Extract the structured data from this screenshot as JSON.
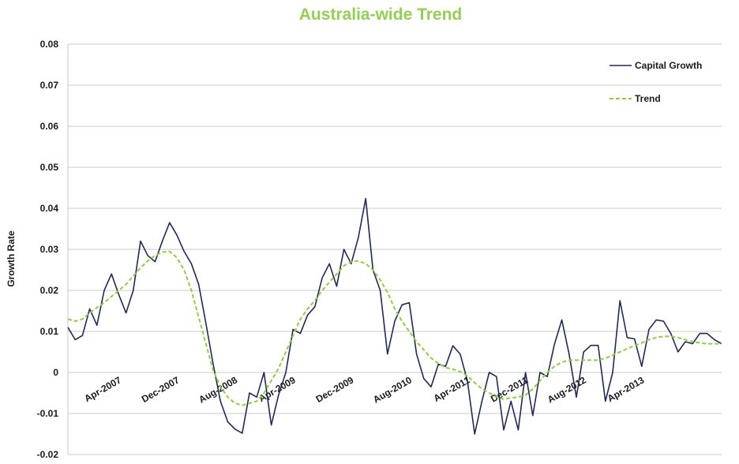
{
  "chart_data": {
    "type": "line",
    "title": "Australia-wide Trend",
    "ylabel": "Growth Rate",
    "xlabel": "",
    "ylim": [
      -0.02,
      0.08
    ],
    "yticks": [
      "0.08",
      "0.07",
      "0.06",
      "0.05",
      "0.04",
      "0.03",
      "0.02",
      "0.01",
      "0",
      "-0.01",
      "-0.02"
    ],
    "xticks": [
      "Apr-2007",
      "Dec-2007",
      "Aug-2008",
      "Apr-2009",
      "Dec-2009",
      "Aug-2010",
      "Apr-2011",
      "Dec-2011",
      "Aug-2012",
      "Apr-2013"
    ],
    "xtick_month_index": [
      7,
      15,
      23,
      31,
      39,
      47,
      55,
      63,
      71,
      79
    ],
    "x_month_count": 91,
    "grid": true,
    "legend_position": "top-right",
    "series": [
      {
        "name": "Capital Growth",
        "color": "#1f2a5a",
        "style": "solid",
        "values": [
          0.011,
          0.008,
          0.009,
          0.0155,
          0.0115,
          0.02,
          0.024,
          0.019,
          0.0145,
          0.02,
          0.032,
          0.0285,
          0.027,
          0.032,
          0.0365,
          0.0335,
          0.0295,
          0.0265,
          0.0215,
          0.012,
          0.002,
          -0.007,
          -0.012,
          -0.0138,
          -0.0148,
          -0.005,
          -0.006,
          0.0,
          -0.0128,
          -0.0055,
          0.0,
          0.0105,
          0.0095,
          0.014,
          0.016,
          0.023,
          0.0265,
          0.021,
          0.03,
          0.0265,
          0.033,
          0.0424,
          0.025,
          0.02,
          0.0045,
          0.0125,
          0.0165,
          0.017,
          0.0045,
          -0.0015,
          -0.0035,
          0.002,
          0.0015,
          0.0065,
          0.0045,
          -0.002,
          -0.015,
          -0.007,
          0.0,
          -0.001,
          -0.014,
          -0.007,
          -0.014,
          0.0,
          -0.0105,
          0.0,
          -0.001,
          0.007,
          0.0128,
          0.0045,
          -0.006,
          0.005,
          0.0066,
          0.0066,
          -0.007,
          0.0,
          0.0175,
          0.0085,
          0.0082,
          0.0015,
          0.0105,
          0.0128,
          0.0125,
          0.0095,
          0.005,
          0.0075,
          0.007,
          0.0095,
          0.0095,
          0.008,
          0.007
        ]
      },
      {
        "name": "Trend",
        "color": "#8fcf3c",
        "style": "dashed",
        "values": [
          0.013,
          0.0125,
          0.013,
          0.0145,
          0.0158,
          0.017,
          0.0185,
          0.02,
          0.0215,
          0.0235,
          0.0255,
          0.0272,
          0.0285,
          0.0293,
          0.0295,
          0.028,
          0.025,
          0.02,
          0.0135,
          0.007,
          0.0005,
          -0.0035,
          -0.006,
          -0.0075,
          -0.008,
          -0.0075,
          -0.007,
          -0.005,
          -0.002,
          0.001,
          0.005,
          0.009,
          0.013,
          0.0155,
          0.0175,
          0.02,
          0.022,
          0.024,
          0.026,
          0.027,
          0.0272,
          0.0265,
          0.025,
          0.0225,
          0.0195,
          0.0155,
          0.0125,
          0.01,
          0.0075,
          0.0055,
          0.0035,
          0.0022,
          0.0012,
          0.0008,
          0.0002,
          -0.0008,
          -0.0025,
          -0.004,
          -0.005,
          -0.006,
          -0.0065,
          -0.0062,
          -0.006,
          -0.0055,
          -0.004,
          -0.002,
          0.0,
          0.0015,
          0.0025,
          0.003,
          0.003,
          0.003,
          0.003,
          0.003,
          0.0035,
          0.0042,
          0.005,
          0.0058,
          0.0065,
          0.0072,
          0.008,
          0.0085,
          0.0088,
          0.0088,
          0.0085,
          0.008,
          0.0075,
          0.0072,
          0.007,
          0.007,
          0.007
        ]
      }
    ]
  },
  "colors": {
    "title": "#92d050",
    "capital_growth": "#1f2a5a",
    "trend": "#8fcf3c",
    "grid": "#c8c8c8"
  }
}
